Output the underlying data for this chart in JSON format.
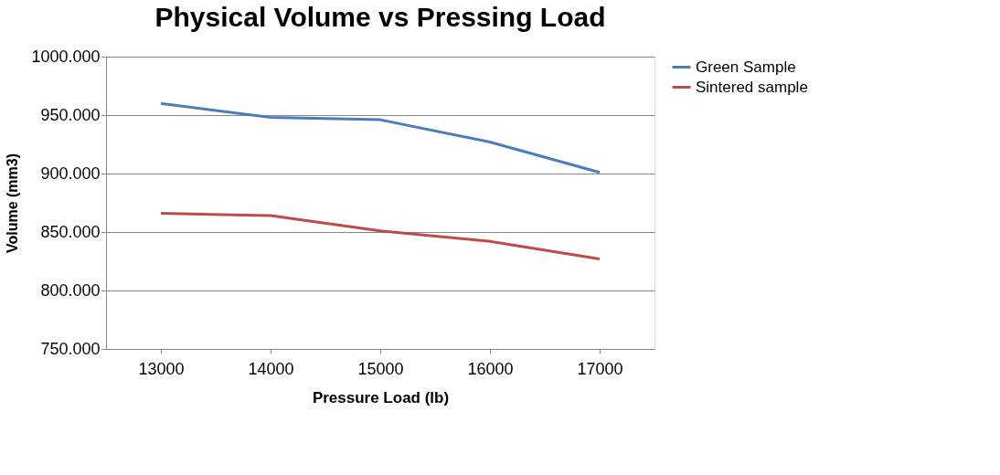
{
  "chart_data": {
    "type": "line",
    "title": "Physical Volume vs Pressing Load",
    "xlabel": "Pressure Load (lb)",
    "ylabel": "Volume (mm3)",
    "categories": [
      "13000",
      "14000",
      "15000",
      "16000",
      "17000"
    ],
    "series": [
      {
        "name": "Green Sample",
        "color": "#4a7ebb",
        "values": [
          960,
          948,
          946,
          927,
          901
        ]
      },
      {
        "name": "Sintered sample",
        "color": "#be4b48",
        "values": [
          866,
          864,
          851,
          842,
          827
        ]
      }
    ],
    "ylim": [
      750,
      1000
    ],
    "yticks": [
      {
        "value": 750,
        "label": "750.000"
      },
      {
        "value": 800,
        "label": "800.000"
      },
      {
        "value": 850,
        "label": "850.000"
      },
      {
        "value": 900,
        "label": "900.000"
      },
      {
        "value": 950,
        "label": "950.000"
      },
      {
        "value": 1000,
        "label": "1000.000"
      }
    ],
    "grid": "y",
    "legend": "right",
    "marker": "none",
    "line_style": "solid"
  }
}
